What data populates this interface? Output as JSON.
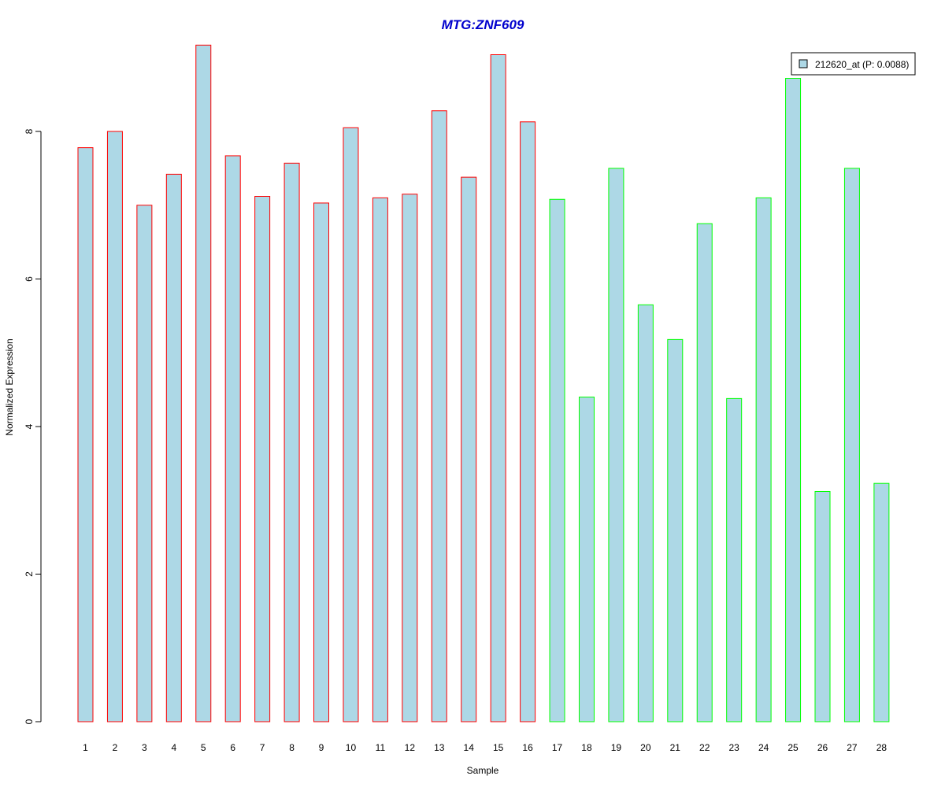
{
  "chart_data": {
    "type": "bar",
    "title": "MTG:ZNF609",
    "xlabel": "Sample",
    "ylabel": "Normalized Expression",
    "categories": [
      "1",
      "2",
      "3",
      "4",
      "5",
      "6",
      "7",
      "8",
      "9",
      "10",
      "11",
      "12",
      "13",
      "14",
      "15",
      "16",
      "17",
      "18",
      "19",
      "20",
      "21",
      "22",
      "23",
      "24",
      "25",
      "26",
      "27",
      "28"
    ],
    "series": [
      {
        "name": "212620_at (P: 0.0088)",
        "values": [
          7.78,
          8.0,
          7.0,
          7.42,
          9.17,
          7.67,
          7.12,
          7.57,
          7.03,
          8.05,
          7.1,
          7.15,
          8.28,
          7.38,
          9.04,
          8.13,
          7.08,
          4.4,
          7.5,
          5.65,
          5.18,
          6.75,
          4.38,
          7.1,
          8.72,
          3.12,
          7.5,
          3.23
        ]
      }
    ],
    "group_colors": [
      "#ff0000",
      "#ff0000",
      "#ff0000",
      "#ff0000",
      "#ff0000",
      "#ff0000",
      "#ff0000",
      "#ff0000",
      "#ff0000",
      "#ff0000",
      "#ff0000",
      "#ff0000",
      "#ff0000",
      "#ff0000",
      "#ff0000",
      "#ff0000",
      "#00ff00",
      "#00ff00",
      "#00ff00",
      "#00ff00",
      "#00ff00",
      "#00ff00",
      "#00ff00",
      "#00ff00",
      "#00ff00",
      "#00ff00",
      "#00ff00",
      "#00ff00"
    ],
    "bar_fill": "#add8e6",
    "title_color": "#0000cd",
    "yticks": [
      0,
      2,
      4,
      6,
      8
    ],
    "ylim": [
      0,
      9.2
    ],
    "grid": false,
    "legend_position": "top-right"
  }
}
